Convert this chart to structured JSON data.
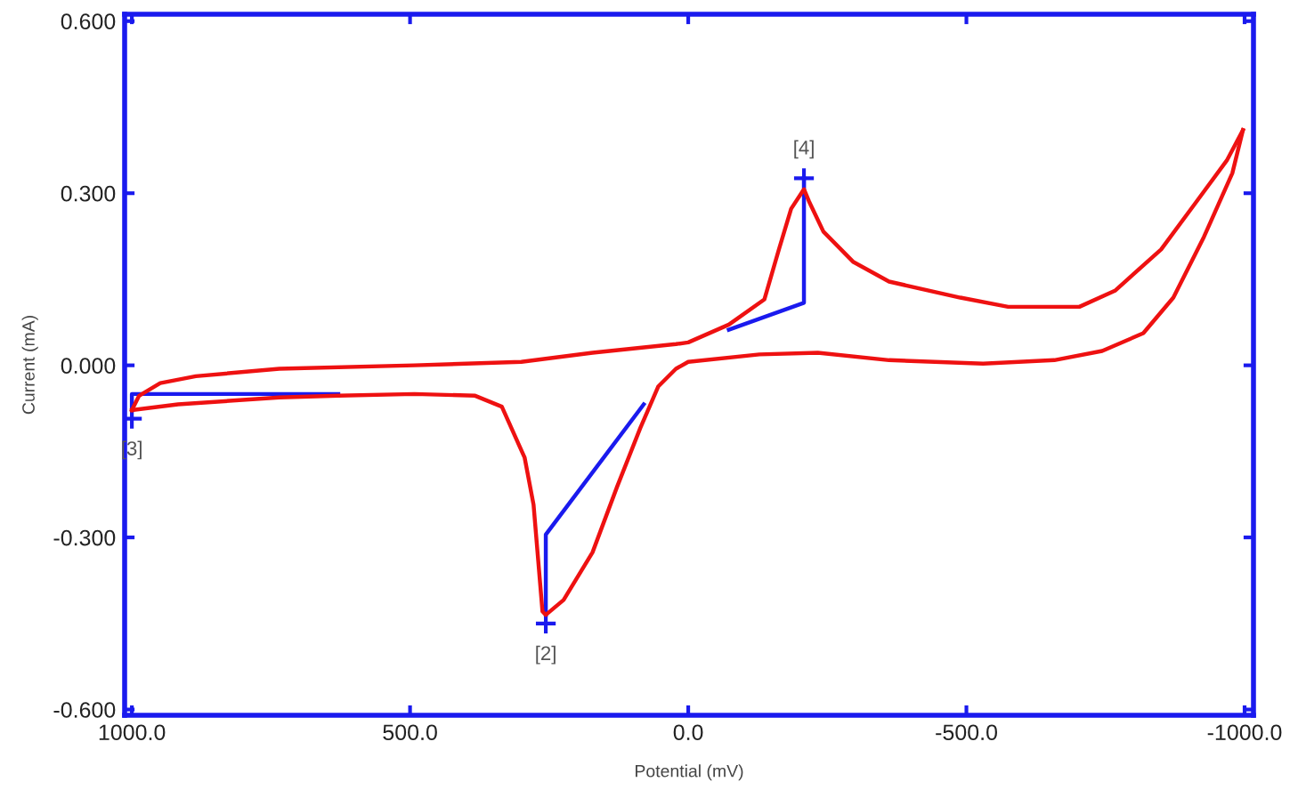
{
  "chart_data": {
    "type": "line",
    "xlabel": "Potential (mV)",
    "ylabel": "Current (mA)",
    "xlim": [
      1013,
      -1016
    ],
    "ylim": [
      -0.61,
      0.612
    ],
    "xticks": [
      {
        "value": 1000,
        "label": "1000.0"
      },
      {
        "value": 500,
        "label": "500.0"
      },
      {
        "value": 0,
        "label": "0.0"
      },
      {
        "value": -500,
        "label": "-500.0"
      },
      {
        "value": -1000,
        "label": "-1000.0"
      }
    ],
    "yticks": [
      {
        "value": -0.6,
        "label": "-0.600"
      },
      {
        "value": -0.3,
        "label": "-0.300"
      },
      {
        "value": 0,
        "label": "0.000"
      },
      {
        "value": 0.3,
        "label": "0.300"
      },
      {
        "value": 0.6,
        "label": "0.600"
      }
    ],
    "grid": false,
    "legend": false,
    "series": [
      {
        "color": "#1a1aee",
        "marker": "none",
        "x": [
          1000,
          1000,
          629
        ],
        "values": [
          -0.078,
          -0.05,
          -0.05
        ]
      },
      {
        "color": "#1a1aee",
        "marker": "none",
        "x": [
          256,
          256,
          80
        ],
        "values": [
          -0.435,
          -0.295,
          -0.068
        ]
      },
      {
        "color": "#1a1aee",
        "marker": "none",
        "x": [
          -208,
          -208,
          -73
        ],
        "values": [
          0.326,
          0.109,
          0.062
        ]
      },
      {
        "color": "#ee1111",
        "marker": "none",
        "x": [
          1000,
          917,
          735,
          629,
          492,
          383,
          335,
          294,
          278,
          262,
          256,
          224,
          172,
          128,
          86,
          54,
          22,
          0,
          -128,
          -233,
          -361,
          -530,
          -658,
          -744,
          -818,
          -872,
          -927,
          -978,
          -997
        ],
        "values": [
          -0.078,
          -0.068,
          -0.056,
          -0.053,
          -0.05,
          -0.053,
          -0.072,
          -0.161,
          -0.243,
          -0.429,
          -0.435,
          -0.409,
          -0.326,
          -0.212,
          -0.109,
          -0.037,
          -0.006,
          0.006,
          0.019,
          0.022,
          0.009,
          0.003,
          0.009,
          0.025,
          0.056,
          0.118,
          0.224,
          0.335,
          0.41
        ]
      },
      {
        "color": "#ee1111",
        "marker": "none",
        "x": [
          -997,
          -968,
          -914,
          -850,
          -767,
          -703,
          -575,
          -489,
          -361,
          -297,
          -243,
          -217,
          -208,
          -185,
          -163,
          -137,
          -73,
          0,
          22,
          172,
          300,
          492,
          735,
          885,
          949,
          987,
          1000
        ],
        "values": [
          0.41,
          0.357,
          0.286,
          0.202,
          0.13,
          0.102,
          0.102,
          0.118,
          0.146,
          0.18,
          0.233,
          0.286,
          0.307,
          0.273,
          0.202,
          0.115,
          0.071,
          0.04,
          0.037,
          0.022,
          0.006,
          0.0,
          -0.006,
          -0.019,
          -0.031,
          -0.053,
          -0.078
        ]
      },
      {
        "type": "scatter",
        "color": "#1a1aee",
        "marker": "cross",
        "x": [
          1000,
          256,
          -208
        ],
        "values": [
          -0.093,
          -0.45,
          0.326
        ]
      }
    ],
    "annotations": [
      {
        "text": "[3]",
        "x": 1000,
        "y": -0.093
      },
      {
        "text": "[2]",
        "x": 256,
        "y": -0.45
      },
      {
        "text": "[4]",
        "x": -208,
        "y": 0.326
      }
    ]
  }
}
